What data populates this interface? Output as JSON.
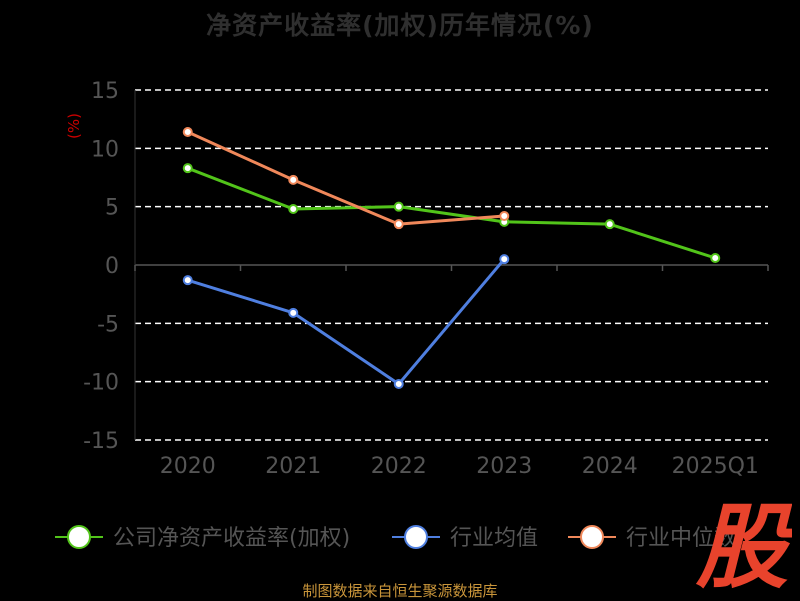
{
  "colors": {
    "background": "#000000",
    "axis_text": "#555555",
    "grid": "#ffffff",
    "unit_text": "#cc0000",
    "source_text": "#c9953a",
    "watermark": "#e8432c"
  },
  "chart_data": {
    "type": "line",
    "title": "净资产收益率(加权)历年情况(%)",
    "ylabel": "(%)",
    "ylim": [
      -15,
      15
    ],
    "yticks": [
      15,
      10,
      5,
      0,
      -5,
      -10,
      -15
    ],
    "categories": [
      "2020",
      "2021",
      "2022",
      "2023",
      "2024",
      "2025Q1"
    ],
    "grid": true,
    "legend_position": "bottom",
    "series": [
      {
        "name": "公司净资产收益率(加权)",
        "color": "#52c41a",
        "values": [
          8.3,
          4.8,
          5.0,
          3.7,
          3.5,
          0.6
        ]
      },
      {
        "name": "行业均值",
        "color": "#4f7fe0",
        "values": [
          -1.3,
          -4.1,
          -10.2,
          0.5,
          null,
          null
        ]
      },
      {
        "name": "行业中位数",
        "color": "#f0885a",
        "values": [
          11.4,
          7.3,
          3.5,
          4.2,
          null,
          null
        ]
      }
    ]
  },
  "footer": {
    "source": "制图数据来自恒生聚源数据库"
  },
  "watermark": {
    "text": "股"
  }
}
